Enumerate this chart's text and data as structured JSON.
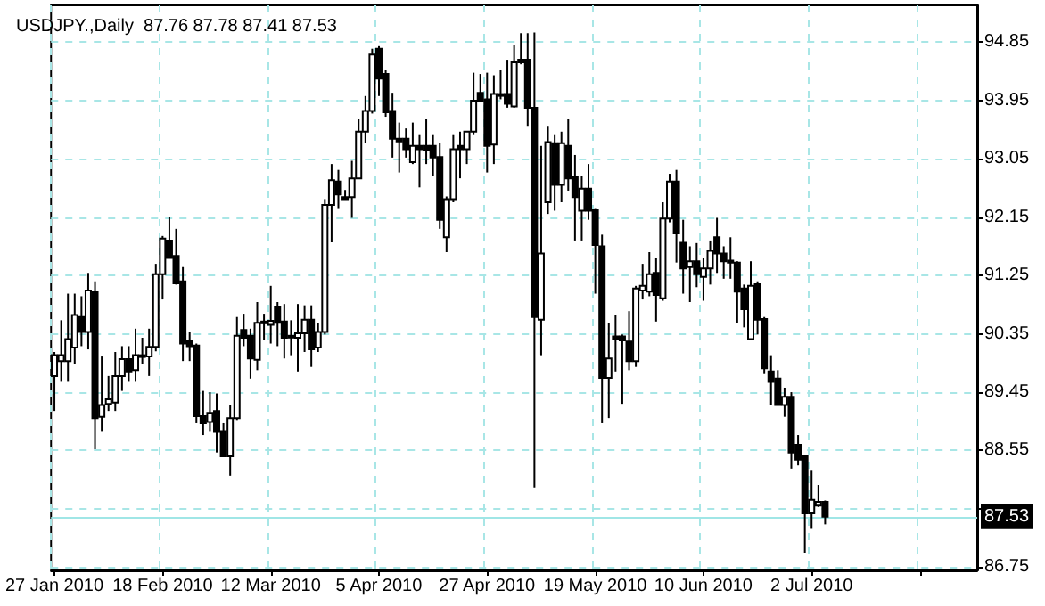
{
  "chart_data": {
    "type": "candlestick",
    "title": "USDJPY.,Daily  87.76 87.78 87.41 87.53",
    "color": "#000000",
    "categories": [
      "27 Jan 2010",
      null,
      null,
      null,
      null,
      null,
      null,
      null,
      null,
      null,
      null,
      null,
      null,
      null,
      null,
      null,
      "18 Feb 2010",
      null,
      null,
      null,
      null,
      null,
      null,
      null,
      null,
      null,
      null,
      null,
      null,
      null,
      null,
      null,
      "12 Mar 2010",
      null,
      null,
      null,
      null,
      null,
      null,
      null,
      null,
      null,
      null,
      null,
      null,
      null,
      null,
      null,
      "5 Apr 2010",
      null,
      null,
      null,
      null,
      null,
      null,
      null,
      null,
      null,
      null,
      null,
      null,
      null,
      null,
      null,
      "27 Apr 2010",
      null,
      null,
      null,
      null,
      null,
      null,
      null,
      null,
      null,
      null,
      null,
      null,
      null,
      null,
      null,
      "19 May 2010",
      null,
      null,
      null,
      null,
      null,
      null,
      null,
      null,
      null,
      null,
      null,
      null,
      null,
      null,
      null,
      "10 Jun 2010",
      null,
      null,
      null,
      null,
      null,
      null,
      null,
      null,
      null,
      null,
      null,
      null,
      null,
      null,
      null,
      "2 Jul 2010",
      null,
      null,
      null,
      null,
      null,
      null,
      null,
      null,
      null,
      null,
      null,
      null,
      null,
      null,
      null,
      null,
      null,
      null,
      null,
      null,
      null,
      null,
      null,
      null
    ],
    "ohlc": [
      [
        89.7,
        90.07,
        89.16,
        90.02
      ],
      [
        89.93,
        90.56,
        89.61,
        90.02
      ],
      [
        89.93,
        90.97,
        89.61,
        90.27
      ],
      [
        90.14,
        90.97,
        89.88,
        90.64
      ],
      [
        90.61,
        90.93,
        90.16,
        90.38
      ],
      [
        90.38,
        91.29,
        90.11,
        91.02
      ],
      [
        91.0,
        91.16,
        88.57,
        89.05
      ],
      [
        89.07,
        90.0,
        88.84,
        89.25
      ],
      [
        89.27,
        89.7,
        89.16,
        89.34
      ],
      [
        89.29,
        90.07,
        89.16,
        89.7
      ],
      [
        89.7,
        90.16,
        89.47,
        89.96
      ],
      [
        89.96,
        90.16,
        89.61,
        89.77
      ],
      [
        89.79,
        90.43,
        89.61,
        90.02
      ],
      [
        90.0,
        90.29,
        89.88,
        90.02
      ],
      [
        90.0,
        90.43,
        89.7,
        90.15
      ],
      [
        90.15,
        91.43,
        90.08,
        91.27
      ],
      [
        91.27,
        91.86,
        90.88,
        91.82
      ],
      [
        91.79,
        92.16,
        91.52,
        91.52
      ],
      [
        91.55,
        91.97,
        91.11,
        91.13
      ],
      [
        91.16,
        91.38,
        89.93,
        90.2
      ],
      [
        90.25,
        90.38,
        89.93,
        90.16
      ],
      [
        90.17,
        90.2,
        88.97,
        89.08
      ],
      [
        89.08,
        89.47,
        88.79,
        88.97
      ],
      [
        88.99,
        89.45,
        88.84,
        89.13
      ],
      [
        89.16,
        89.43,
        88.52,
        88.84
      ],
      [
        88.84,
        88.97,
        88.45,
        88.46
      ],
      [
        88.46,
        89.25,
        88.16,
        89.05
      ],
      [
        89.05,
        90.61,
        89.02,
        90.32
      ],
      [
        90.41,
        90.66,
        90.16,
        90.29
      ],
      [
        90.32,
        90.43,
        89.66,
        89.97
      ],
      [
        89.95,
        90.84,
        89.79,
        90.52
      ],
      [
        90.52,
        90.66,
        90.25,
        90.54
      ],
      [
        90.49,
        91.09,
        90.2,
        90.55
      ],
      [
        90.77,
        90.84,
        90.16,
        90.52
      ],
      [
        90.54,
        90.81,
        89.97,
        90.29
      ],
      [
        90.31,
        90.56,
        90.02,
        90.32
      ],
      [
        90.29,
        90.81,
        89.77,
        90.36
      ],
      [
        90.36,
        90.79,
        90.07,
        90.57
      ],
      [
        90.57,
        90.79,
        89.84,
        90.11
      ],
      [
        90.14,
        90.52,
        90.07,
        90.38
      ],
      [
        90.38,
        92.43,
        90.34,
        92.34
      ],
      [
        92.34,
        92.97,
        91.77,
        92.72
      ],
      [
        92.7,
        92.88,
        92.29,
        92.5
      ],
      [
        92.46,
        92.57,
        92.43,
        92.43
      ],
      [
        92.46,
        93.02,
        92.14,
        92.75
      ],
      [
        92.75,
        93.66,
        92.75,
        93.47
      ],
      [
        93.47,
        94.02,
        93.29,
        93.79
      ],
      [
        93.79,
        94.75,
        93.75,
        94.66
      ],
      [
        94.75,
        94.79,
        94.02,
        94.29
      ],
      [
        94.36,
        94.43,
        93.7,
        93.77
      ],
      [
        93.79,
        94.07,
        93.07,
        93.36
      ],
      [
        93.36,
        93.61,
        92.84,
        93.32
      ],
      [
        93.36,
        93.52,
        93.07,
        93.2
      ],
      [
        93.0,
        93.61,
        92.97,
        93.25
      ],
      [
        93.25,
        93.43,
        92.61,
        93.2
      ],
      [
        93.25,
        93.66,
        92.97,
        93.18
      ],
      [
        93.25,
        93.43,
        92.79,
        93.07
      ],
      [
        93.08,
        93.29,
        91.97,
        92.11
      ],
      [
        91.84,
        92.47,
        91.61,
        92.43
      ],
      [
        92.43,
        93.43,
        92.38,
        93.2
      ],
      [
        93.25,
        93.47,
        92.75,
        93.2
      ],
      [
        93.2,
        93.47,
        92.97,
        93.47
      ],
      [
        93.47,
        94.38,
        93.43,
        93.95
      ],
      [
        94.07,
        94.36,
        93.95,
        93.95
      ],
      [
        93.97,
        94.38,
        92.84,
        93.25
      ],
      [
        93.27,
        94.34,
        92.97,
        94.05
      ],
      [
        94.04,
        94.43,
        93.97,
        94.05
      ],
      [
        94.05,
        94.58,
        93.84,
        93.9
      ],
      [
        93.86,
        94.81,
        93.84,
        94.54
      ],
      [
        94.54,
        94.99,
        94.51,
        94.58
      ],
      [
        94.58,
        94.99,
        93.56,
        93.84
      ],
      [
        93.84,
        95.0,
        87.97,
        90.61
      ],
      [
        90.57,
        93.25,
        90.02,
        91.59
      ],
      [
        92.38,
        93.56,
        92.2,
        93.31
      ],
      [
        93.29,
        93.43,
        92.25,
        92.65
      ],
      [
        92.65,
        93.47,
        92.38,
        93.29
      ],
      [
        93.25,
        93.66,
        92.56,
        92.75
      ],
      [
        92.77,
        93.11,
        91.79,
        92.46
      ],
      [
        92.25,
        92.79,
        91.79,
        92.59
      ],
      [
        92.59,
        92.97,
        92.11,
        92.25
      ],
      [
        92.27,
        92.29,
        90.97,
        91.72
      ],
      [
        91.7,
        91.88,
        88.97,
        89.67
      ],
      [
        89.67,
        90.52,
        89.05,
        89.97
      ],
      [
        90.31,
        90.64,
        89.77,
        90.27
      ],
      [
        90.31,
        90.34,
        89.27,
        90.25
      ],
      [
        90.23,
        90.7,
        89.79,
        89.93
      ],
      [
        89.93,
        91.09,
        89.84,
        91.05
      ],
      [
        91.02,
        91.43,
        90.88,
        91.09
      ],
      [
        91.0,
        91.61,
        90.93,
        91.27
      ],
      [
        91.29,
        91.52,
        90.54,
        90.95
      ],
      [
        90.9,
        92.38,
        90.86,
        92.13
      ],
      [
        92.13,
        92.82,
        92.07,
        92.7
      ],
      [
        92.7,
        92.88,
        91.45,
        91.9
      ],
      [
        91.77,
        92.11,
        90.97,
        91.36
      ],
      [
        91.38,
        91.7,
        90.84,
        91.47
      ],
      [
        91.47,
        91.75,
        91.07,
        91.27
      ],
      [
        91.23,
        91.52,
        90.86,
        91.36
      ],
      [
        91.36,
        91.79,
        91.11,
        91.63
      ],
      [
        91.84,
        92.14,
        91.29,
        91.59
      ],
      [
        91.59,
        91.7,
        91.2,
        91.47
      ],
      [
        91.48,
        91.84,
        91.2,
        91.45
      ],
      [
        91.45,
        91.47,
        90.52,
        91.0
      ],
      [
        91.05,
        91.11,
        90.45,
        90.73
      ],
      [
        90.27,
        91.47,
        90.25,
        91.09
      ],
      [
        91.12,
        91.16,
        90.34,
        90.57
      ],
      [
        90.58,
        90.61,
        89.73,
        89.82
      ],
      [
        89.77,
        90.02,
        89.25,
        89.61
      ],
      [
        89.66,
        89.79,
        89.25,
        89.25
      ],
      [
        89.25,
        89.52,
        89.07,
        89.38
      ],
      [
        89.38,
        89.45,
        88.27,
        88.52
      ],
      [
        88.64,
        88.79,
        88.32,
        88.41
      ],
      [
        88.47,
        88.47,
        86.97,
        87.58
      ],
      [
        87.58,
        88.25,
        87.34,
        87.79
      ],
      [
        87.7,
        88.02,
        87.68,
        87.76
      ],
      [
        87.76,
        87.78,
        87.41,
        87.53
      ],
      null,
      null,
      null,
      null,
      null,
      null,
      null,
      null,
      null,
      null,
      null,
      null,
      null,
      null,
      null,
      null,
      null,
      null,
      null,
      null,
      null,
      null
    ],
    "ylim": [
      86.7,
      95.42
    ],
    "yticks": [
      86.75,
      {
        "value": 87.65,
        "label": null
      },
      88.55,
      89.45,
      90.35,
      91.25,
      92.15,
      93.05,
      93.95,
      94.85
    ],
    "ref_lines": [
      {
        "axis": "y",
        "value": 87.53,
        "label": "87.53",
        "color": "#a0e6e6"
      }
    ],
    "grid": true
  }
}
